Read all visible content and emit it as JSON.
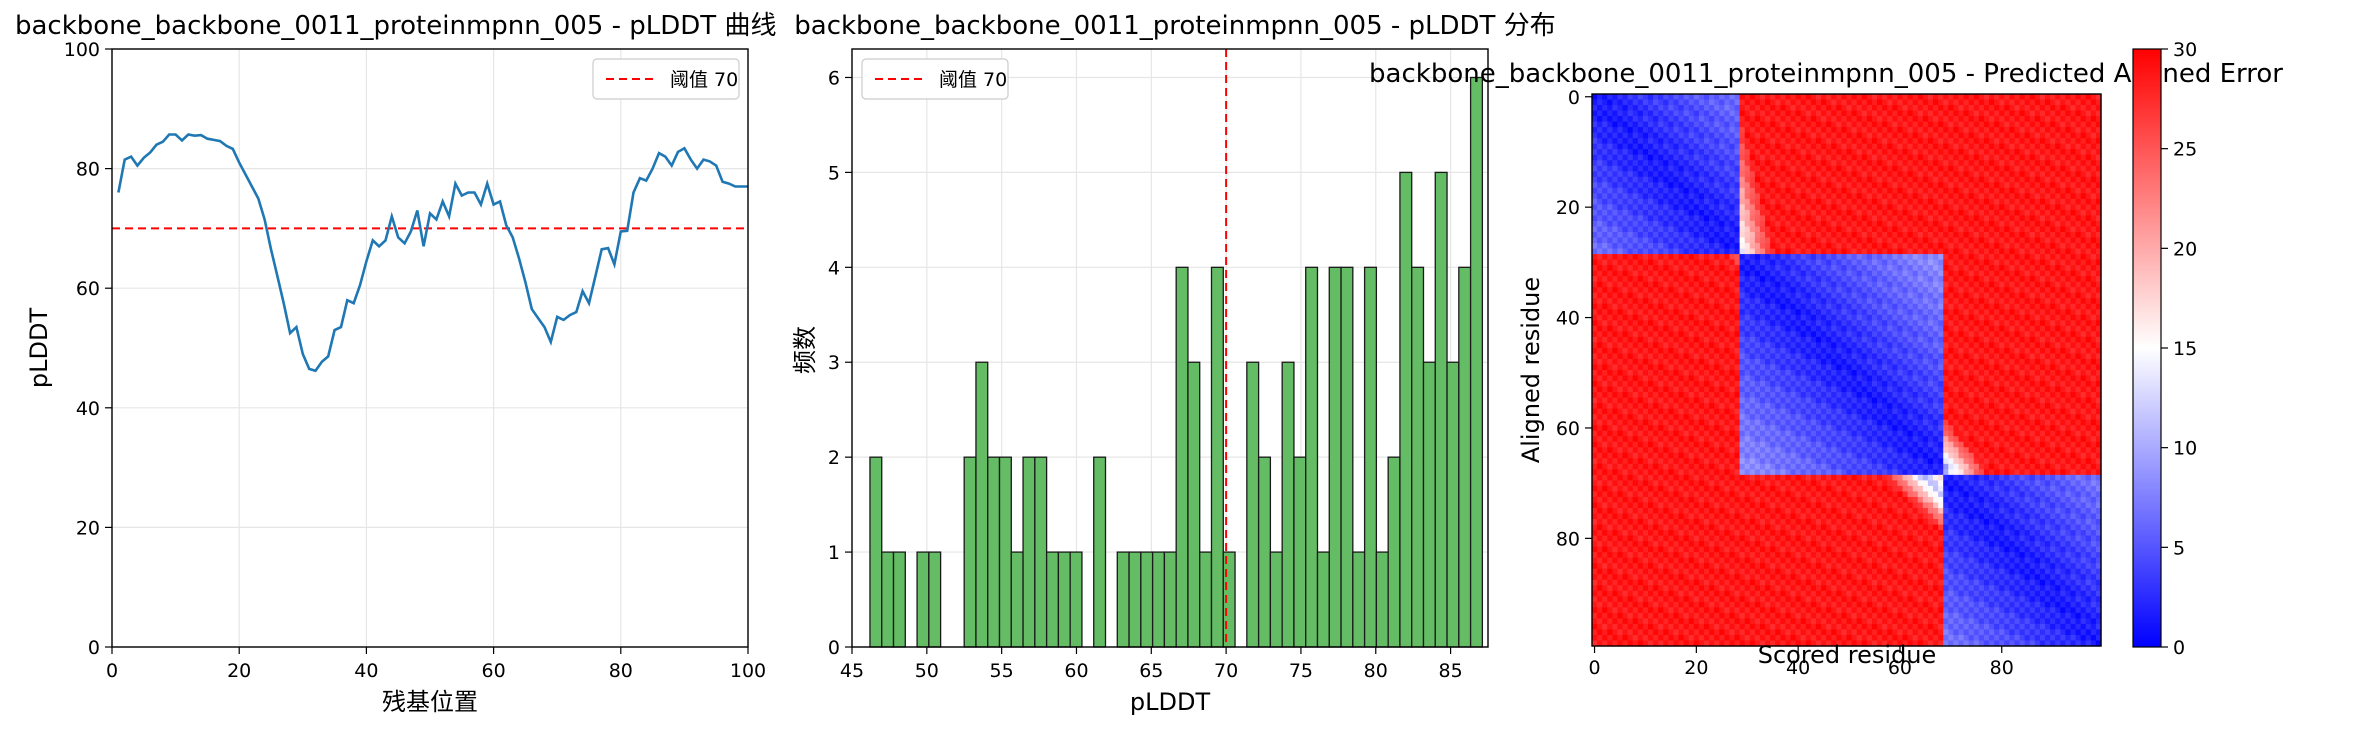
{
  "chart_data": [
    {
      "type": "line",
      "title": "backbone_backbone_0011_proteinmpnn_005 - pLDDT 曲线",
      "xlabel": "残基位置",
      "ylabel": "pLDDT",
      "xlim": [
        0,
        100
      ],
      "ylim": [
        0,
        100
      ],
      "xticks": [
        "0",
        "20",
        "40",
        "60",
        "80",
        "100"
      ],
      "yticks": [
        "0",
        "20",
        "40",
        "60",
        "80",
        "100"
      ],
      "grid": true,
      "legend": {
        "position": "top-right",
        "entries": [
          "阈值 70"
        ]
      },
      "threshold": 70,
      "colors": {
        "line": "#1f77b4",
        "threshold": "#ff0000"
      },
      "x": [
        1,
        2,
        3,
        4,
        5,
        6,
        7,
        8,
        9,
        10,
        11,
        12,
        13,
        14,
        15,
        16,
        17,
        18,
        19,
        20,
        21,
        22,
        23,
        24,
        25,
        26,
        27,
        28,
        29,
        30,
        31,
        32,
        33,
        34,
        35,
        36,
        37,
        38,
        39,
        40,
        41,
        42,
        43,
        44,
        45,
        46,
        47,
        48,
        49,
        50,
        51,
        52,
        53,
        54,
        55,
        56,
        57,
        58,
        59,
        60,
        61,
        62,
        63,
        64,
        65,
        66,
        67,
        68,
        69,
        70,
        71,
        72,
        73,
        74,
        75,
        76,
        77,
        78,
        79,
        80,
        81,
        82,
        83,
        84,
        85,
        86,
        87,
        88,
        89,
        90,
        91,
        92,
        93,
        94,
        95,
        96,
        97,
        98,
        99,
        100
      ],
      "y": [
        76,
        81.5,
        82,
        80.5,
        81.8,
        82.7,
        84,
        84.5,
        85.7,
        85.7,
        84.7,
        85.7,
        85.5,
        85.6,
        85,
        84.8,
        84.6,
        83.8,
        83.3,
        81,
        79,
        77,
        75,
        71.5,
        66.5,
        62,
        57.5,
        52.5,
        53.5,
        49,
        46.5,
        46.2,
        47.7,
        48.6,
        53,
        53.5,
        58,
        57.5,
        60.5,
        64.5,
        68,
        67,
        68,
        72,
        68.5,
        67.5,
        69.5,
        73,
        67,
        72.5,
        71.5,
        74.5,
        72,
        77.5,
        75.5,
        76,
        76,
        74,
        77.5,
        74,
        74.5,
        70.5,
        68.5,
        65,
        61,
        56.5,
        55,
        53.5,
        51,
        55.2,
        54.7,
        55.5,
        56,
        59.5,
        57.5,
        62,
        66.5,
        66.7,
        64,
        69.5,
        69.6,
        76,
        78.4,
        78,
        80,
        82.6,
        82,
        80.5,
        82.8,
        83.4,
        81.5,
        80,
        81.5,
        81.2,
        80.5,
        77.8,
        77.5,
        77,
        77,
        77
      ]
    },
    {
      "type": "bar",
      "title": "backbone_backbone_0011_proteinmpnn_005 - pLDDT 分布",
      "xlabel": "pLDDT",
      "ylabel": "频数",
      "xlim": [
        45,
        87.5
      ],
      "ylim": [
        0,
        6.3
      ],
      "xticks": [
        "45",
        "50",
        "55",
        "60",
        "65",
        "70",
        "75",
        "80",
        "85"
      ],
      "yticks": [
        "0",
        "1",
        "2",
        "3",
        "4",
        "5",
        "6"
      ],
      "grid": true,
      "legend": {
        "position": "top-left",
        "entries": [
          "阈值 70"
        ]
      },
      "threshold": 70,
      "colors": {
        "bar": "#5cb85c",
        "edge": "#1a1a1a",
        "threshold": "#ff0000"
      },
      "bin_start": 46.2,
      "bin_width": 0.787,
      "values": [
        2,
        1,
        1,
        0,
        1,
        1,
        0,
        0,
        2,
        3,
        2,
        2,
        1,
        2,
        2,
        1,
        1,
        1,
        0,
        2,
        0,
        1,
        1,
        1,
        1,
        1,
        4,
        3,
        1,
        4,
        1,
        0,
        3,
        2,
        1,
        3,
        2,
        4,
        1,
        4,
        4,
        1,
        4,
        1,
        2,
        5,
        4,
        3,
        5,
        3,
        4,
        6
      ]
    },
    {
      "type": "heatmap",
      "title": "backbone_backbone_0011_proteinmpnn_005 - Predicted Aligned Error",
      "xlabel": "Scored residue",
      "ylabel": "Aligned residue",
      "n": 100,
      "xticks": [
        "0",
        "20",
        "40",
        "60",
        "80"
      ],
      "yticks": [
        "0",
        "20",
        "40",
        "60",
        "80"
      ],
      "colormap": "bwr",
      "vmin": 0,
      "vmax": 30,
      "colorbar_ticks": [
        "0",
        "5",
        "10",
        "15",
        "20",
        "25",
        "30"
      ],
      "domains": [
        [
          0,
          29
        ],
        [
          29,
          69
        ],
        [
          69,
          100
        ]
      ],
      "boundaries": [
        [
          0,
          20,
          34,
          29
        ],
        [
          29,
          34,
          67,
          69
        ],
        [
          69,
          65,
          100,
          100
        ]
      ]
    }
  ]
}
